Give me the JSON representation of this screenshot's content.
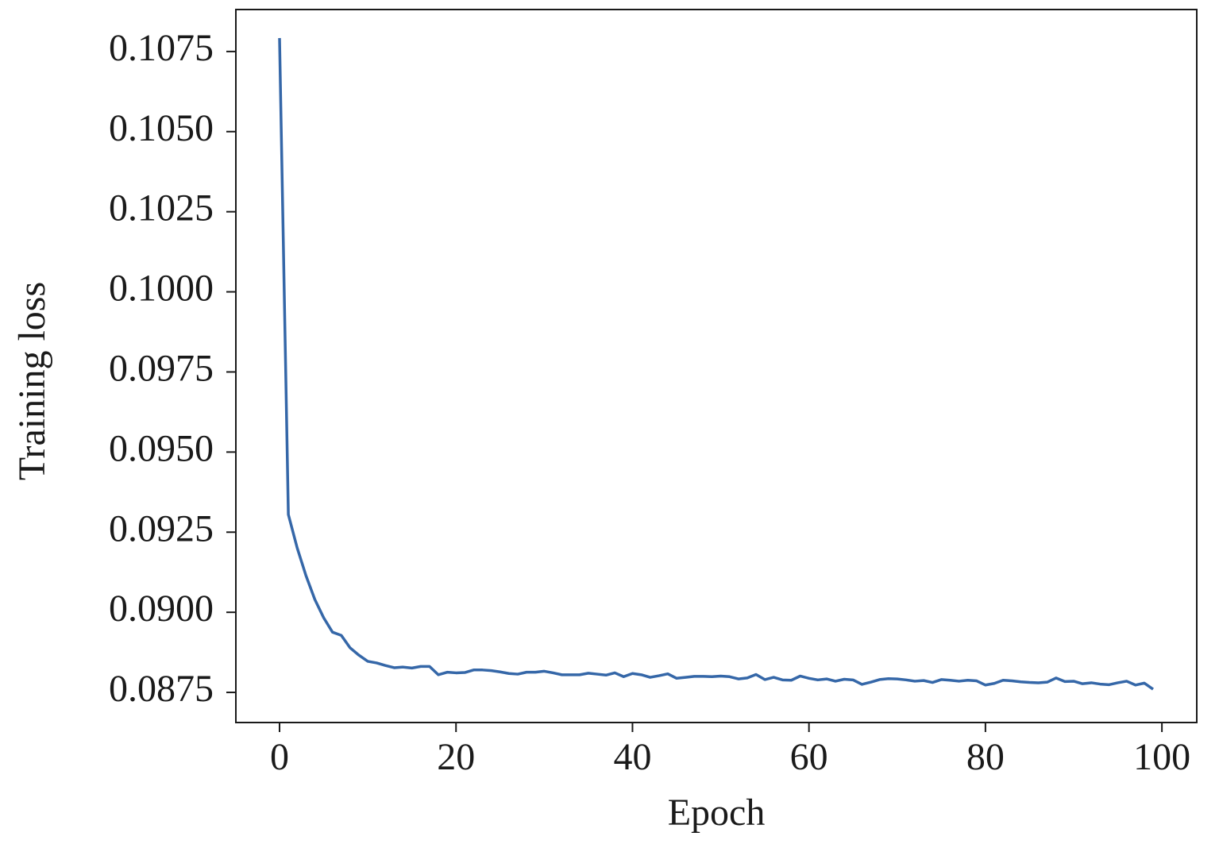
{
  "chart_data": {
    "type": "line",
    "xlabel": "Epoch",
    "ylabel": "Training loss",
    "x": [
      0,
      1,
      2,
      3,
      4,
      5,
      6,
      7,
      8,
      9,
      10,
      11,
      12,
      13,
      14,
      15,
      16,
      17,
      18,
      19,
      20,
      21,
      22,
      23,
      24,
      25,
      26,
      27,
      28,
      29,
      30,
      31,
      32,
      33,
      34,
      35,
      36,
      37,
      38,
      39,
      40,
      41,
      42,
      43,
      44,
      45,
      46,
      47,
      48,
      49,
      50,
      51,
      52,
      53,
      54,
      55,
      56,
      57,
      58,
      59,
      60,
      61,
      62,
      63,
      64,
      65,
      66,
      67,
      68,
      69,
      70,
      71,
      72,
      73,
      74,
      75,
      76,
      77,
      78,
      79,
      80,
      81,
      82,
      83,
      84,
      85,
      86,
      87,
      88,
      89,
      90,
      91,
      92,
      93,
      94,
      95,
      96,
      97,
      98,
      99
    ],
    "values": [
      0.10792,
      0.09305,
      0.09201,
      0.09114,
      0.0904,
      0.08983,
      0.08938,
      0.08928,
      0.08889,
      0.08866,
      0.08847,
      0.08842,
      0.08834,
      0.08827,
      0.08829,
      0.08826,
      0.08831,
      0.08831,
      0.08805,
      0.08813,
      0.08811,
      0.08812,
      0.0882,
      0.0882,
      0.08818,
      0.08814,
      0.08809,
      0.08807,
      0.08813,
      0.08813,
      0.08816,
      0.08811,
      0.08805,
      0.08805,
      0.08805,
      0.0881,
      0.08807,
      0.08804,
      0.08811,
      0.08799,
      0.08809,
      0.08805,
      0.08797,
      0.08802,
      0.08808,
      0.08794,
      0.08797,
      0.088,
      0.088,
      0.08799,
      0.08801,
      0.08799,
      0.08792,
      0.08795,
      0.08806,
      0.0879,
      0.08797,
      0.08789,
      0.08788,
      0.08801,
      0.08794,
      0.08789,
      0.08792,
      0.08785,
      0.08791,
      0.08789,
      0.08775,
      0.08782,
      0.0879,
      0.08793,
      0.08792,
      0.08789,
      0.08785,
      0.08787,
      0.08781,
      0.0879,
      0.08788,
      0.08785,
      0.08788,
      0.08786,
      0.08773,
      0.08778,
      0.08788,
      0.08786,
      0.08783,
      0.08781,
      0.0878,
      0.08782,
      0.08795,
      0.08784,
      0.08785,
      0.08777,
      0.0878,
      0.08776,
      0.08774,
      0.0878,
      0.08785,
      0.08773,
      0.08779,
      0.0876
    ],
    "color": "#3567a8",
    "xlim": [
      -4.95,
      103.95
    ],
    "xticks": [
      0,
      20,
      40,
      60,
      80,
      100
    ],
    "ylim": [
      0.08656,
      0.10881
    ],
    "yticks": [
      {
        "value": 0.0875,
        "label": "0.0875"
      },
      {
        "value": 0.09,
        "label": "0.0900"
      },
      {
        "value": 0.0925,
        "label": "0.0925"
      },
      {
        "value": 0.095,
        "label": "0.0950"
      },
      {
        "value": 0.0975,
        "label": "0.0975"
      },
      {
        "value": 0.1,
        "label": "0.1000"
      },
      {
        "value": 0.1025,
        "label": "0.1025"
      },
      {
        "value": 0.105,
        "label": "0.1050"
      },
      {
        "value": 0.1075,
        "label": "0.1075"
      }
    ],
    "grid": false
  }
}
